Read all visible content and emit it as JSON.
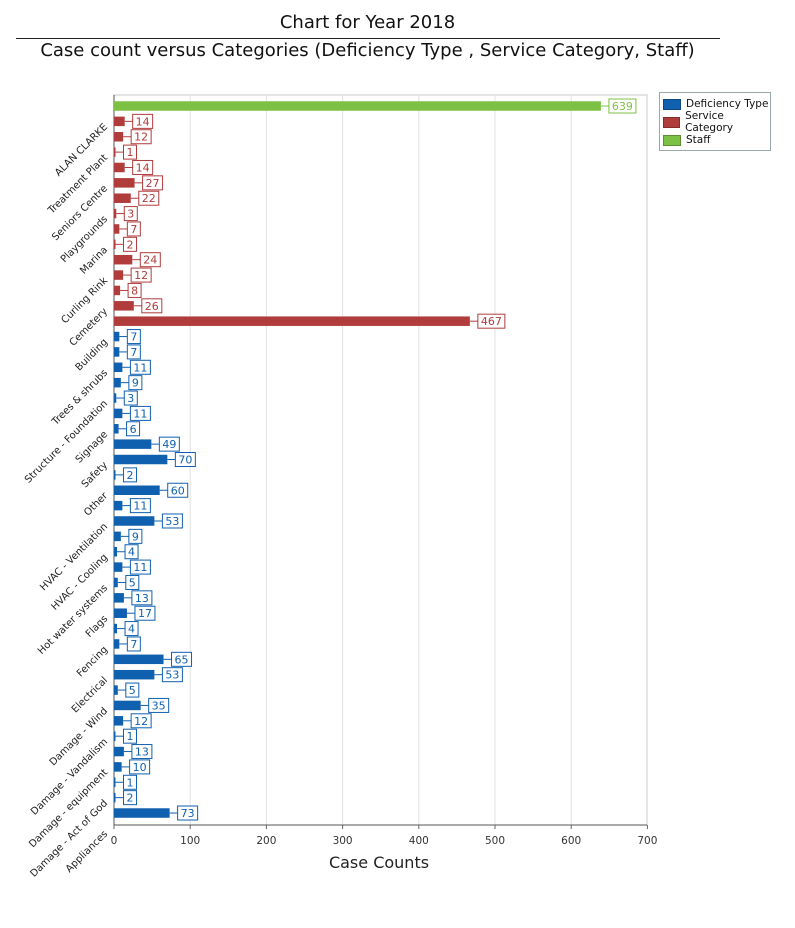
{
  "chart_data": {
    "type": "bar",
    "orientation": "horizontal",
    "title": "Chart for Year 2018",
    "subtitle": "Case count versus Categories (Deficiency Type , Service Category, Staff)",
    "xlabel": "Case Counts",
    "ylabel": "",
    "xlim": [
      0,
      700
    ],
    "xticks": [
      "0",
      "100",
      "200",
      "300",
      "400",
      "500",
      "600",
      "700"
    ],
    "legend_position": "top-right",
    "series": [
      {
        "name": "Deficiency Type",
        "color": "#1060b0"
      },
      {
        "name": "Service Category",
        "color": "#b03c3c"
      },
      {
        "name": "Staff",
        "color": "#7cc144"
      }
    ],
    "bars": [
      {
        "series": "Staff",
        "value": 639
      },
      {
        "series": "Service Category",
        "value": 14
      },
      {
        "series": "Service Category",
        "value": 12
      },
      {
        "series": "Service Category",
        "value": 1
      },
      {
        "series": "Service Category",
        "value": 14
      },
      {
        "series": "Service Category",
        "value": 27
      },
      {
        "series": "Service Category",
        "value": 22
      },
      {
        "series": "Service Category",
        "value": 3
      },
      {
        "series": "Service Category",
        "value": 7
      },
      {
        "series": "Service Category",
        "value": 2
      },
      {
        "series": "Service Category",
        "value": 24
      },
      {
        "series": "Service Category",
        "value": 12
      },
      {
        "series": "Service Category",
        "value": 8
      },
      {
        "series": "Service Category",
        "value": 26
      },
      {
        "series": "Service Category",
        "value": 467
      },
      {
        "series": "Deficiency Type",
        "value": 7
      },
      {
        "series": "Deficiency Type",
        "value": 7
      },
      {
        "series": "Deficiency Type",
        "value": 11
      },
      {
        "series": "Deficiency Type",
        "value": 9
      },
      {
        "series": "Deficiency Type",
        "value": 3
      },
      {
        "series": "Deficiency Type",
        "value": 11
      },
      {
        "series": "Deficiency Type",
        "value": 6
      },
      {
        "series": "Deficiency Type",
        "value": 49
      },
      {
        "series": "Deficiency Type",
        "value": 70
      },
      {
        "series": "Deficiency Type",
        "value": 2
      },
      {
        "series": "Deficiency Type",
        "value": 60
      },
      {
        "series": "Deficiency Type",
        "value": 11
      },
      {
        "series": "Deficiency Type",
        "value": 53
      },
      {
        "series": "Deficiency Type",
        "value": 9
      },
      {
        "series": "Deficiency Type",
        "value": 4
      },
      {
        "series": "Deficiency Type",
        "value": 11
      },
      {
        "series": "Deficiency Type",
        "value": 5
      },
      {
        "series": "Deficiency Type",
        "value": 13
      },
      {
        "series": "Deficiency Type",
        "value": 17
      },
      {
        "series": "Deficiency Type",
        "value": 4
      },
      {
        "series": "Deficiency Type",
        "value": 7
      },
      {
        "series": "Deficiency Type",
        "value": 65
      },
      {
        "series": "Deficiency Type",
        "value": 53
      },
      {
        "series": "Deficiency Type",
        "value": 5
      },
      {
        "series": "Deficiency Type",
        "value": 35
      },
      {
        "series": "Deficiency Type",
        "value": 12
      },
      {
        "series": "Deficiency Type",
        "value": 1
      },
      {
        "series": "Deficiency Type",
        "value": 13
      },
      {
        "series": "Deficiency Type",
        "value": 10
      },
      {
        "series": "Deficiency Type",
        "value": 1
      },
      {
        "series": "Deficiency Type",
        "value": 2
      },
      {
        "series": "Deficiency Type",
        "value": 73
      }
    ],
    "category_labels": [
      {
        "label": "ALAN CLARKE",
        "bar": 1
      },
      {
        "label": "Treatment Plant",
        "bar": 3
      },
      {
        "label": "Seniors Centre",
        "bar": 5
      },
      {
        "label": "Playgrounds",
        "bar": 7
      },
      {
        "label": "Marina",
        "bar": 9
      },
      {
        "label": "Curling Rink",
        "bar": 11
      },
      {
        "label": "Cemetery",
        "bar": 13
      },
      {
        "label": "Building",
        "bar": 15
      },
      {
        "label": "Trees & shrubs",
        "bar": 17
      },
      {
        "label": "Structure - Foundation",
        "bar": 19
      },
      {
        "label": "Signage",
        "bar": 21
      },
      {
        "label": "Safety",
        "bar": 23
      },
      {
        "label": "Other",
        "bar": 25
      },
      {
        "label": "HVAC - Ventilation",
        "bar": 27
      },
      {
        "label": "HVAC - Cooling",
        "bar": 29
      },
      {
        "label": "Hot water systems",
        "bar": 31
      },
      {
        "label": "Flags",
        "bar": 33
      },
      {
        "label": "Fencing",
        "bar": 35
      },
      {
        "label": "Electrical",
        "bar": 37
      },
      {
        "label": "Damage - Wind",
        "bar": 39
      },
      {
        "label": "Damage - Vandalism",
        "bar": 41
      },
      {
        "label": "Damage - equipment",
        "bar": 43
      },
      {
        "label": "Damage - Act of God",
        "bar": 45
      },
      {
        "label": "Appliances",
        "bar": 47
      }
    ]
  }
}
